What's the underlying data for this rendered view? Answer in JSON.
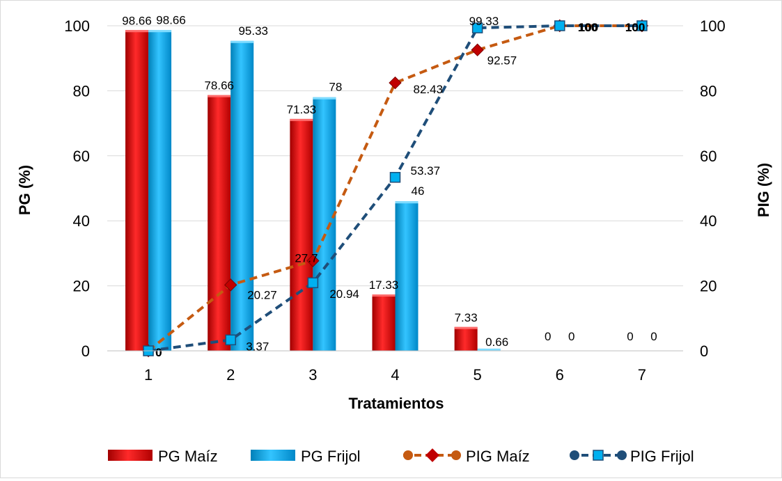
{
  "chart_data": {
    "type": "bar",
    "categories": [
      "1",
      "2",
      "3",
      "4",
      "5",
      "6",
      "7"
    ],
    "xlabel": "Tratamientos",
    "ylabel": "PG (%)",
    "y2label": "PIG (%)",
    "ylim": [
      0,
      100
    ],
    "y2lim": [
      0,
      100
    ],
    "yticks": [
      "0",
      "20",
      "40",
      "60",
      "80",
      "100"
    ],
    "y2ticks": [
      "0",
      "20",
      "40",
      "60",
      "80",
      "100"
    ],
    "grid": true,
    "legend_position": "bottom",
    "series": [
      {
        "name": "PG Maíz",
        "kind": "bar",
        "axis": "left",
        "color": "#ff0000",
        "values": [
          98.66,
          78.66,
          71.33,
          17.33,
          7.33,
          0,
          0
        ],
        "labels": [
          "98.66",
          "78.66",
          "71.33",
          "17.33",
          "7.33",
          "0",
          "0"
        ]
      },
      {
        "name": "PG Frijol",
        "kind": "bar",
        "axis": "left",
        "color": "#00b0f0",
        "values": [
          98.66,
          95.33,
          78,
          46,
          0.66,
          0,
          0
        ],
        "labels": [
          "98.66",
          "95.33",
          "78",
          "46",
          "0.66",
          "0",
          "0"
        ]
      },
      {
        "name": "PIG Maíz",
        "kind": "line",
        "axis": "right",
        "color": "#c55a11",
        "marker_color": "#c00000",
        "values": [
          0,
          20.27,
          27.7,
          82.43,
          92.57,
          100,
          100
        ],
        "labels": [
          "0",
          "20.27",
          "27.7",
          "82.43",
          "92.57",
          "100",
          "100"
        ]
      },
      {
        "name": "PIG Frijol",
        "kind": "line",
        "axis": "right",
        "color": "#1f4e79",
        "marker_color": "#00b0f0",
        "values": [
          0,
          3.37,
          20.94,
          53.37,
          99.33,
          100,
          100
        ],
        "labels": [
          "0",
          "3.37",
          "20.94",
          "53.37",
          "99.33",
          "100",
          "100"
        ]
      }
    ]
  }
}
